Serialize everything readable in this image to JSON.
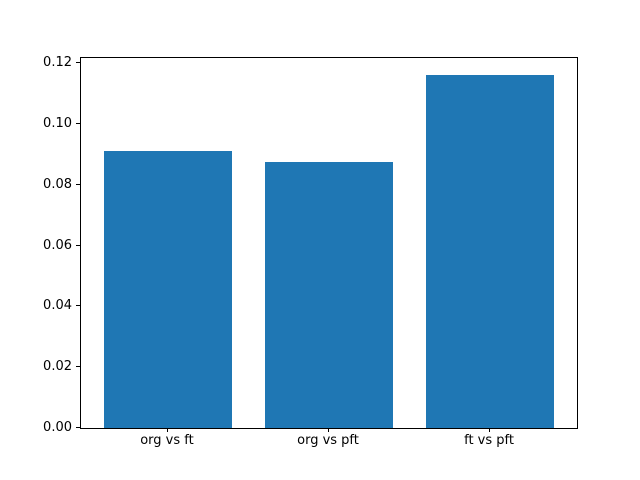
{
  "figure": {
    "background_color": "#ffffff",
    "spine_color": "#000000",
    "tick_color": "#000000"
  },
  "chart_data": {
    "type": "bar",
    "title": "",
    "xlabel": "",
    "ylabel": "",
    "categories": [
      "org vs ft",
      "org vs pft",
      "ft vs pft"
    ],
    "values": [
      0.0913,
      0.0877,
      0.1162
    ],
    "bar_color": "#1f77b4",
    "yticks": [
      "0.00",
      "0.02",
      "0.04",
      "0.06",
      "0.08",
      "0.10",
      "0.12"
    ],
    "ytick_values": [
      0.0,
      0.02,
      0.04,
      0.06,
      0.08,
      0.1,
      0.12
    ],
    "ylim": [
      0,
      0.1218
    ],
    "grid": false,
    "legend": false,
    "bar_width_fraction": 0.8,
    "x_margin": 0.54
  }
}
